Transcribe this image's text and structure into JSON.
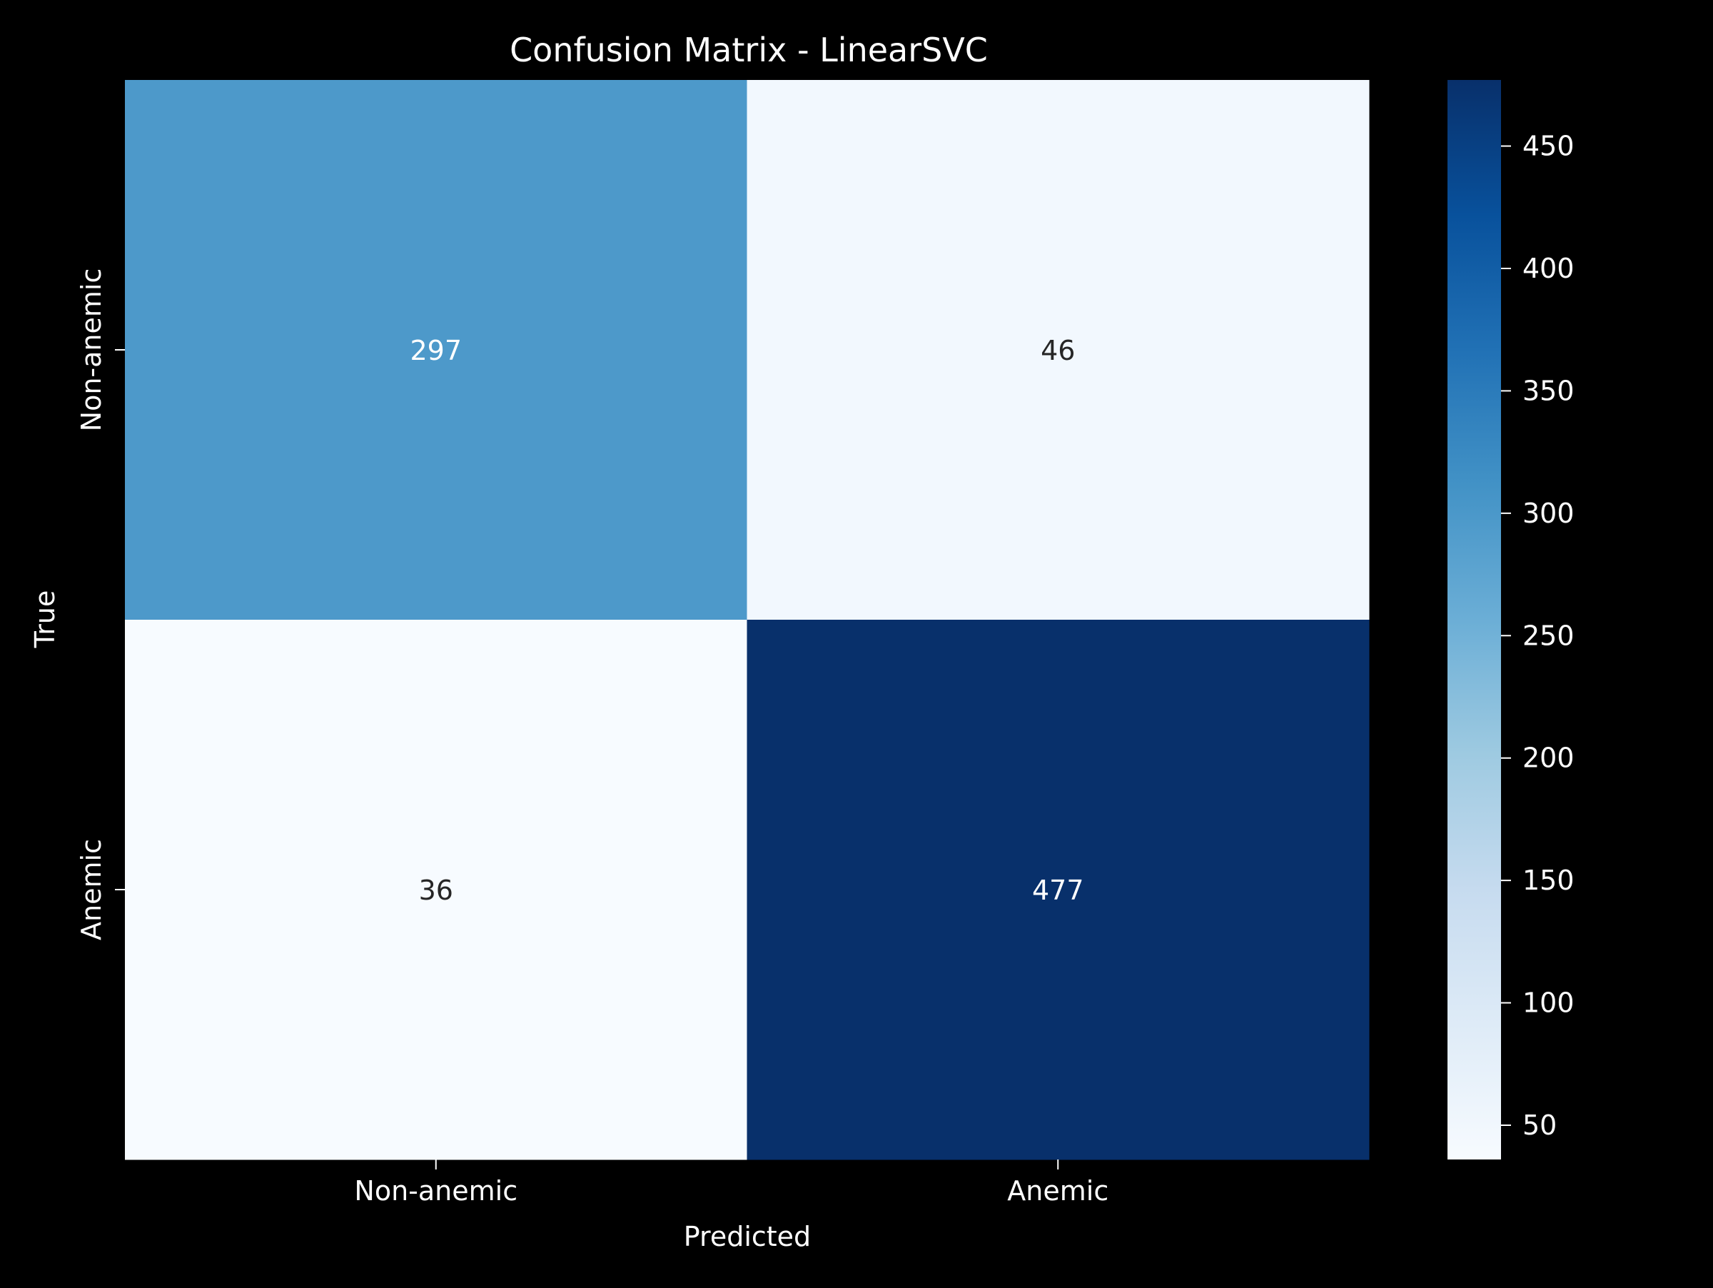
{
  "chart_data": {
    "type": "heatmap",
    "title": "Confusion Matrix - LinearSVC",
    "xlabel": "Predicted",
    "ylabel": "True",
    "x_categories": [
      "Non-anemic",
      "Anemic"
    ],
    "y_categories": [
      "Non-anemic",
      "Anemic"
    ],
    "matrix": [
      [
        297,
        46
      ],
      [
        36,
        477
      ]
    ],
    "colormap": "Blues",
    "value_range": [
      36,
      477
    ],
    "colorbar": {
      "ticks": [
        50,
        100,
        150,
        200,
        250,
        300,
        350,
        400,
        450
      ],
      "tick_labels": [
        "50",
        "100",
        "150",
        "200",
        "250",
        "300",
        "350",
        "400",
        "450"
      ]
    },
    "colors": {
      "background": "#000000",
      "text": "#ffffff",
      "cell_text_dark": "#262626",
      "cell_text_light": "#ffffff"
    }
  }
}
